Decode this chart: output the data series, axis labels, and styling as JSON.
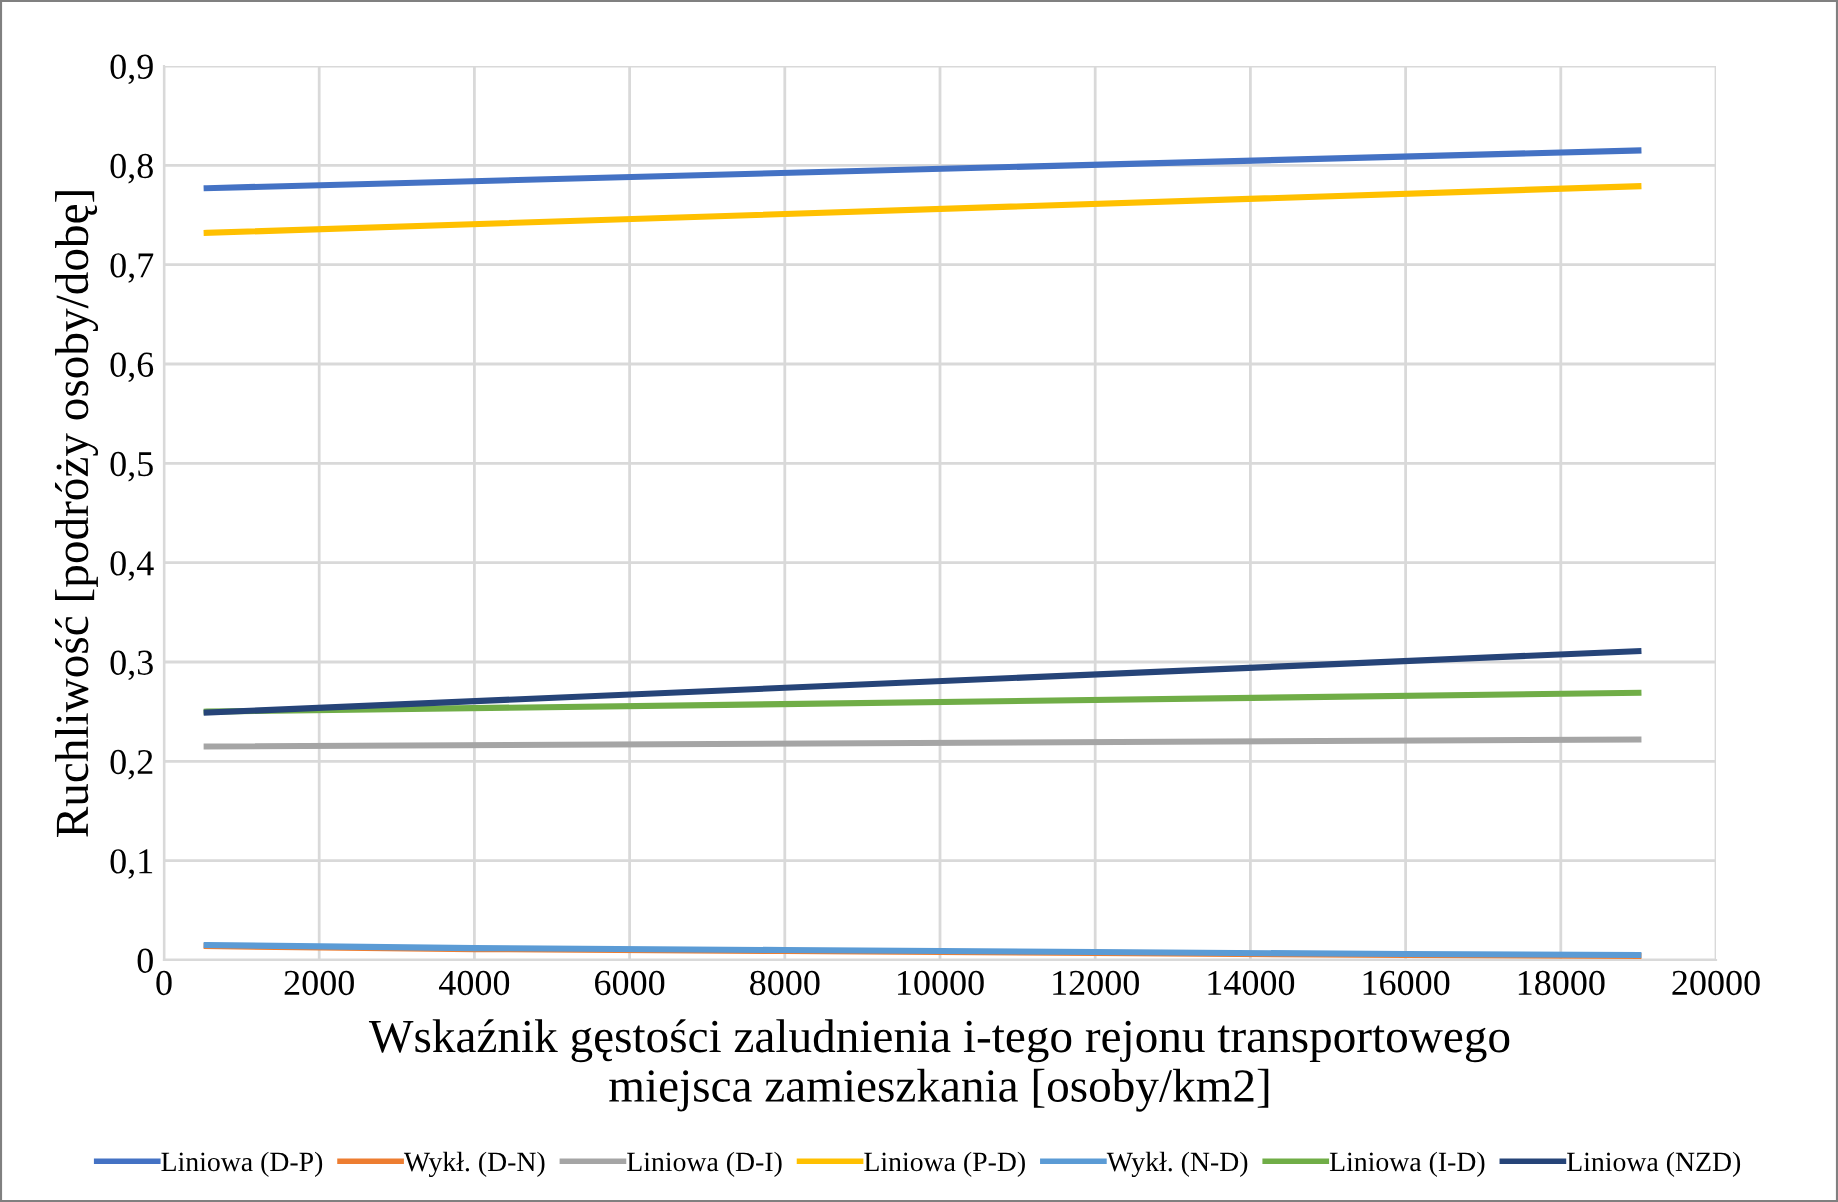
{
  "chart_data": {
    "type": "line",
    "xlabel": "Wskaźnik gęstości zaludnienia i-tego rejonu transportowego\nmiejsca zamieszkania [osoby/km2]",
    "ylabel": "Ruchliwość [podróży osoby/dobę]",
    "series": [
      {
        "name": "Liniowa (D-P)",
        "color": "#4472c4",
        "x": [
          550,
          19000
        ],
        "values": [
          0.777,
          0.815
        ]
      },
      {
        "name": "Wykł. (D-N)",
        "color": "#ed7d31",
        "x": [
          550,
          4000,
          8000,
          12000,
          16000,
          19000
        ],
        "values": [
          0.014,
          0.011,
          0.009,
          0.007,
          0.005,
          0.004
        ]
      },
      {
        "name": "Liniowa (D-I)",
        "color": "#a5a5a5",
        "x": [
          550,
          19000
        ],
        "values": [
          0.215,
          0.222
        ]
      },
      {
        "name": "Liniowa (P-D)",
        "color": "#ffc000",
        "x": [
          550,
          19000
        ],
        "values": [
          0.732,
          0.779
        ]
      },
      {
        "name": "Wykł. (N-D)",
        "color": "#5b9bd5",
        "x": [
          550,
          4000,
          8000,
          12000,
          16000,
          19000
        ],
        "values": [
          0.015,
          0.012,
          0.01,
          0.008,
          0.006,
          0.005
        ]
      },
      {
        "name": "Liniowa (I-D)",
        "color": "#70ad47",
        "x": [
          550,
          19000
        ],
        "values": [
          0.25,
          0.269
        ]
      },
      {
        "name": "Liniowa (NZD)",
        "color": "#264478",
        "x": [
          550,
          19000
        ],
        "values": [
          0.249,
          0.311
        ]
      }
    ],
    "xlim": [
      0,
      20000
    ],
    "xticks": [
      0,
      2000,
      4000,
      6000,
      8000,
      10000,
      12000,
      14000,
      16000,
      18000,
      20000
    ],
    "ylim": [
      0,
      0.9
    ],
    "yticks": [
      0,
      {
        "value": 0.1,
        "label": "0,1"
      },
      {
        "value": 0.2,
        "label": "0,2"
      },
      {
        "value": 0.3,
        "label": "0,3"
      },
      {
        "value": 0.4,
        "label": "0,4"
      },
      {
        "value": 0.5,
        "label": "0,5"
      },
      {
        "value": 0.6,
        "label": "0,6"
      },
      {
        "value": 0.7,
        "label": "0,7"
      },
      {
        "value": 0.8,
        "label": "0,8"
      },
      {
        "value": 0.9,
        "label": "0,9"
      }
    ],
    "grid": true,
    "legend": "bottom",
    "marker": "none",
    "line_style": "solid"
  }
}
